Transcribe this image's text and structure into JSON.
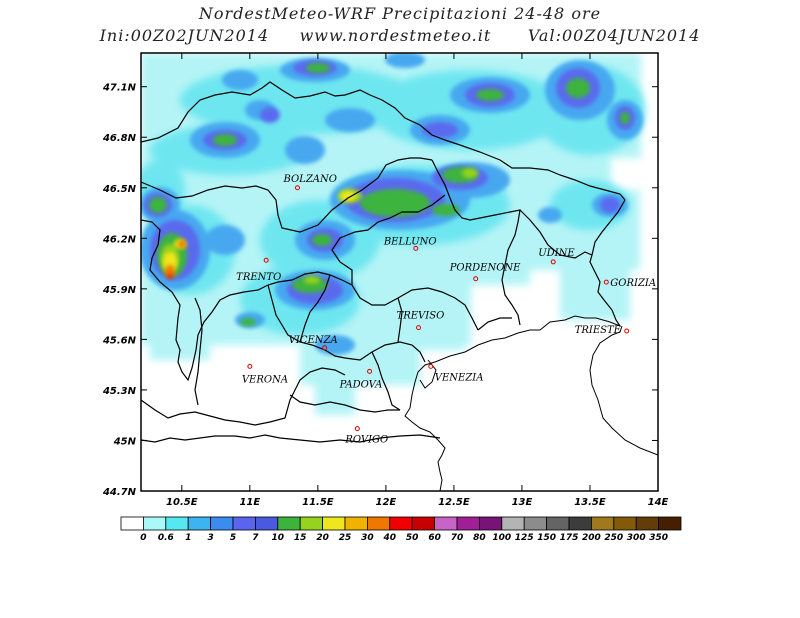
{
  "header": {
    "line1": "NordestMeteo-WRF Precipitazioni 24-48 ore",
    "line2": "Ini:00Z02JUN2014     www.nordestmeteo.it      Val:00Z04JUN2014"
  },
  "map": {
    "lon_range": [
      10.2,
      14.0
    ],
    "lat_range": [
      44.7,
      47.3
    ],
    "lon_ticks": [
      "10.5E",
      "11E",
      "11.5E",
      "12E",
      "12.5E",
      "13E",
      "13.5E",
      "14E"
    ],
    "lat_ticks": [
      "47.1N",
      "46.8N",
      "46.5N",
      "46.2N",
      "45.9N",
      "45.6N",
      "45.3N",
      "45N",
      "44.7N"
    ],
    "cities": [
      {
        "name": "BOLZANO",
        "lon": 11.35,
        "lat": 46.5
      },
      {
        "name": "BELLUNO",
        "lon": 12.22,
        "lat": 46.14
      },
      {
        "name": "UDINE",
        "lon": 13.23,
        "lat": 46.06
      },
      {
        "name": "PORDENONE",
        "lon": 12.66,
        "lat": 45.96
      },
      {
        "name": "TRENTO",
        "lon": 11.12,
        "lat": 46.07
      },
      {
        "name": "GORIZIA",
        "lon": 13.62,
        "lat": 45.94
      },
      {
        "name": "TREVISO",
        "lon": 12.24,
        "lat": 45.67
      },
      {
        "name": "TRIESTE",
        "lon": 13.77,
        "lat": 45.65
      },
      {
        "name": "VICENZA",
        "lon": 11.55,
        "lat": 45.55
      },
      {
        "name": "VERONA",
        "lon": 11.0,
        "lat": 45.44
      },
      {
        "name": "PADOVA",
        "lon": 11.88,
        "lat": 45.41
      },
      {
        "name": "VENEZIA",
        "lon": 12.33,
        "lat": 45.44
      },
      {
        "name": "ROVIGO",
        "lon": 11.79,
        "lat": 45.07
      }
    ]
  },
  "legend": {
    "labels": [
      "0",
      "0.6",
      "1",
      "3",
      "5",
      "7",
      "10",
      "15",
      "20",
      "25",
      "30",
      "40",
      "50",
      "60",
      "70",
      "80",
      "100",
      "125",
      "150",
      "175",
      "200",
      "250",
      "300",
      "350"
    ],
    "colors": [
      "#ffffff",
      "#aaf8f8",
      "#55e8f0",
      "#3cb4f0",
      "#3c8cf0",
      "#5a64ee",
      "#4a5ae0",
      "#3cb43c",
      "#96d21e",
      "#f0e61e",
      "#f0b400",
      "#f07800",
      "#f00000",
      "#c80000",
      "#c864c8",
      "#a01e96",
      "#781478",
      "#b4b4b4",
      "#8c8c8c",
      "#646464",
      "#3c3c3c",
      "#a0781e",
      "#825a0a",
      "#643c0a",
      "#461e00"
    ]
  }
}
